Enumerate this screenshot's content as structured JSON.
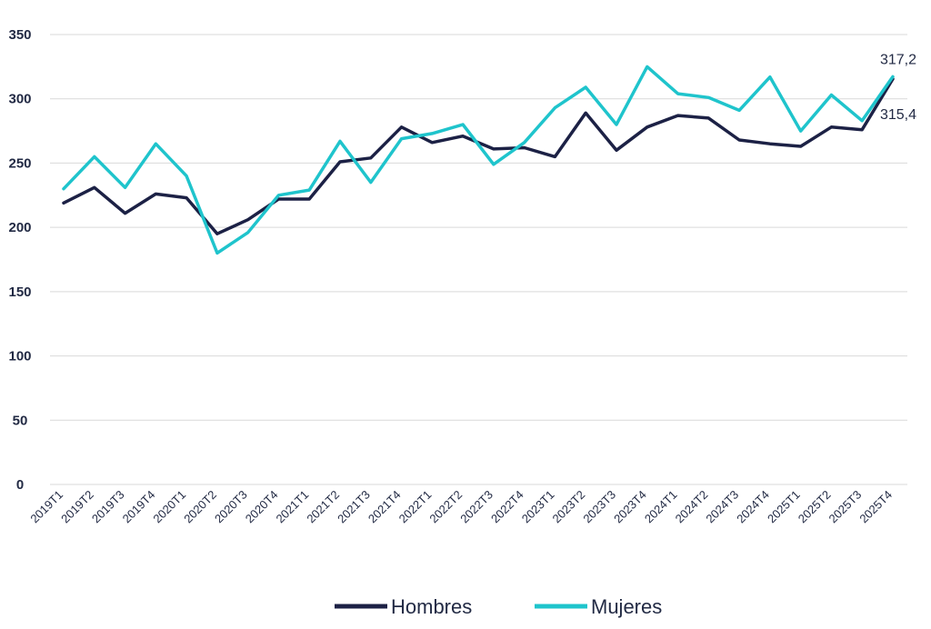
{
  "chart_data": {
    "type": "line",
    "title": "",
    "xlabel": "",
    "ylabel": "",
    "ylim": [
      0,
      350
    ],
    "yticks": [
      0,
      50,
      100,
      150,
      200,
      250,
      300,
      350
    ],
    "grid": true,
    "legend_position": "bottom",
    "categories": [
      "2019T1",
      "2019T2",
      "2019T3",
      "2019T4",
      "2020T1",
      "2020T2",
      "2020T3",
      "2020T4",
      "2021T1",
      "2021T2",
      "2021T3",
      "2021T4",
      "2022T1",
      "2022T2",
      "2022T3",
      "2022T4",
      "2023T1",
      "2023T2",
      "2023T3",
      "2023T4",
      "2024T1",
      "2024T2",
      "2024T3",
      "2024T4",
      "2025T1",
      "2025T2",
      "2025T3",
      "2025T4"
    ],
    "series": [
      {
        "name": "Hombres",
        "color": "#1c2145",
        "values": [
          219,
          231,
          211,
          226,
          223,
          195,
          206,
          222,
          222,
          251,
          254,
          278,
          266,
          271,
          261,
          262,
          255,
          289,
          260,
          278,
          287,
          285,
          268,
          265,
          263,
          278,
          276,
          315.4
        ]
      },
      {
        "name": "Mujeres",
        "color": "#1fc4cc",
        "values": [
          230,
          255,
          231,
          265,
          240,
          180,
          196,
          225,
          229,
          267,
          235,
          269,
          273,
          280,
          249,
          266,
          293,
          309,
          280,
          325,
          304,
          301,
          291,
          317,
          275,
          303,
          283,
          317.2
        ]
      }
    ],
    "annotations": [
      {
        "text": "317,2",
        "series": "Mujeres",
        "index": 27
      },
      {
        "text": "315,4",
        "series": "Hombres",
        "index": 27
      }
    ]
  }
}
